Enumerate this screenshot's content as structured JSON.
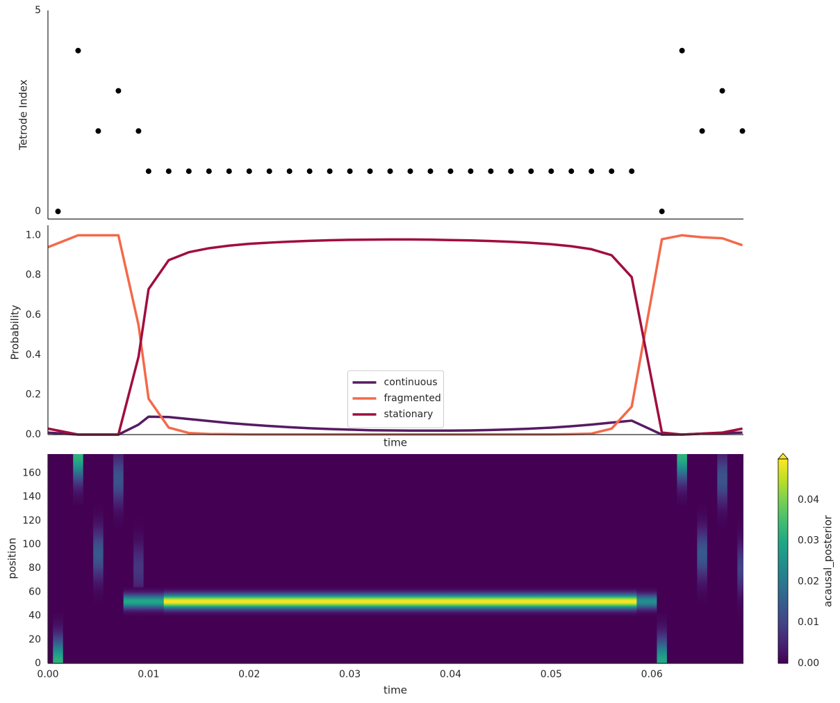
{
  "chart_data": [
    {
      "type": "scatter",
      "ylabel": "Tetrode Index",
      "color": "#000000",
      "x": [
        0.001,
        0.003,
        0.005,
        0.007,
        0.009,
        0.01,
        0.012,
        0.014,
        0.016,
        0.018,
        0.02,
        0.022,
        0.024,
        0.026,
        0.028,
        0.03,
        0.032,
        0.034,
        0.036,
        0.038,
        0.04,
        0.042,
        0.044,
        0.046,
        0.048,
        0.05,
        0.052,
        0.054,
        0.056,
        0.058,
        0.061,
        0.063,
        0.065,
        0.067,
        0.069
      ],
      "y": [
        0,
        4,
        2,
        3,
        2,
        1,
        1,
        1,
        1,
        1,
        1,
        1,
        1,
        1,
        1,
        1,
        1,
        1,
        1,
        1,
        1,
        1,
        1,
        1,
        1,
        1,
        1,
        1,
        1,
        1,
        0,
        4,
        2,
        3,
        2
      ],
      "xlim": [
        0,
        0.0691
      ],
      "ylim": [
        -0.19,
        5
      ],
      "yticks": [
        0,
        5
      ]
    },
    {
      "type": "line",
      "ylabel": "Probability",
      "xlabel": "time",
      "legend": "lower center",
      "x": [
        0,
        0.003,
        0.005,
        0.007,
        0.009,
        0.01,
        0.012,
        0.014,
        0.016,
        0.018,
        0.02,
        0.022,
        0.024,
        0.026,
        0.028,
        0.03,
        0.032,
        0.034,
        0.036,
        0.038,
        0.04,
        0.042,
        0.044,
        0.046,
        0.048,
        0.05,
        0.052,
        0.054,
        0.056,
        0.058,
        0.061,
        0.063,
        0.065,
        0.067,
        0.069
      ],
      "series": [
        {
          "name": "continuous",
          "color": "#561b63",
          "values": [
            0.01,
            0,
            0,
            0,
            0.05,
            0.09,
            0.088,
            0.078,
            0.068,
            0.058,
            0.05,
            0.043,
            0.037,
            0.032,
            0.028,
            0.025,
            0.022,
            0.021,
            0.02,
            0.02,
            0.02,
            0.021,
            0.023,
            0.026,
            0.03,
            0.035,
            0.042,
            0.05,
            0.06,
            0.07,
            0,
            0,
            0.005,
            0.008,
            0.01
          ]
        },
        {
          "name": "fragmented",
          "color": "#f4694a",
          "values": [
            0.94,
            1,
            1,
            1,
            0.55,
            0.18,
            0.035,
            0.008,
            0.003,
            0.002,
            0.001,
            0.001,
            0.001,
            0.001,
            0.001,
            0.001,
            0.001,
            0.001,
            0.001,
            0.001,
            0.001,
            0.001,
            0.001,
            0.001,
            0.001,
            0.001,
            0.002,
            0.005,
            0.03,
            0.14,
            0.98,
            1,
            0.99,
            0.985,
            0.95
          ]
        },
        {
          "name": "stationary",
          "color": "#a00e3f",
          "values": [
            0.03,
            0,
            0,
            0,
            0.39,
            0.73,
            0.875,
            0.915,
            0.935,
            0.948,
            0.957,
            0.963,
            0.968,
            0.972,
            0.975,
            0.977,
            0.978,
            0.979,
            0.979,
            0.978,
            0.976,
            0.974,
            0.971,
            0.967,
            0.962,
            0.955,
            0.945,
            0.93,
            0.9,
            0.79,
            0.01,
            0,
            0.005,
            0.01,
            0.03
          ]
        }
      ],
      "xlim": [
        0,
        0.0691
      ],
      "ylim": [
        0,
        1.05
      ],
      "yticks": [
        {
          "value": 0,
          "label": "0.0"
        },
        0.2,
        0.4,
        0.6,
        0.8,
        {
          "value": 1,
          "label": "1.0"
        }
      ]
    },
    {
      "type": "heatmap",
      "xlabel": "time",
      "ylabel": "position",
      "colormap": "viridis",
      "xlim": [
        0,
        0.0691
      ],
      "ylim": [
        0,
        176
      ],
      "xticks": [
        {
          "value": 0,
          "label": "0.00"
        },
        0.01,
        0.02,
        0.03,
        0.04,
        0.05,
        0.06
      ],
      "yticks": [
        0,
        20,
        40,
        60,
        80,
        100,
        120,
        140,
        160
      ],
      "clim": [
        0,
        0.05
      ],
      "colorbar_label": "acausal_posterior",
      "colorbar_ticks": [
        {
          "value": 0,
          "label": "0.00"
        },
        0.01,
        0.02,
        0.03,
        0.04
      ],
      "background": 0,
      "blobs": [
        {
          "t": [
            0.0005,
            0.0015
          ],
          "center": 0,
          "spread": 14,
          "peak": 0.032
        },
        {
          "t": [
            0.0025,
            0.0035
          ],
          "center": 175,
          "spread": 14,
          "peak": 0.032
        },
        {
          "t": [
            0.0045,
            0.0055
          ],
          "center": 92,
          "spread": 14,
          "peak": 0.014
        },
        {
          "t": [
            0.0065,
            0.0075
          ],
          "center": 155,
          "spread": 14,
          "peak": 0.013
        },
        {
          "t": [
            0.0085,
            0.0095
          ],
          "center": 80,
          "spread": 14,
          "peak": 0.008
        },
        {
          "t": [
            0.0075,
            0.0115
          ],
          "center": 52,
          "spread": 4,
          "peak": 0.03
        },
        {
          "t": [
            0.0115,
            0.0585
          ],
          "center": 52,
          "spread": 4,
          "peak": 0.05
        },
        {
          "t": [
            0.0585,
            0.0605
          ],
          "center": 52,
          "spread": 4,
          "peak": 0.025
        },
        {
          "t": [
            0.0605,
            0.0615
          ],
          "center": 0,
          "spread": 14,
          "peak": 0.03
        },
        {
          "t": [
            0.0625,
            0.0635
          ],
          "center": 175,
          "spread": 14,
          "peak": 0.032
        },
        {
          "t": [
            0.0645,
            0.0655
          ],
          "center": 92,
          "spread": 14,
          "peak": 0.014
        },
        {
          "t": [
            0.0665,
            0.0675
          ],
          "center": 155,
          "spread": 14,
          "peak": 0.013
        },
        {
          "t": [
            0.0685,
            0.0691
          ],
          "center": 80,
          "spread": 14,
          "peak": 0.01
        }
      ]
    }
  ]
}
